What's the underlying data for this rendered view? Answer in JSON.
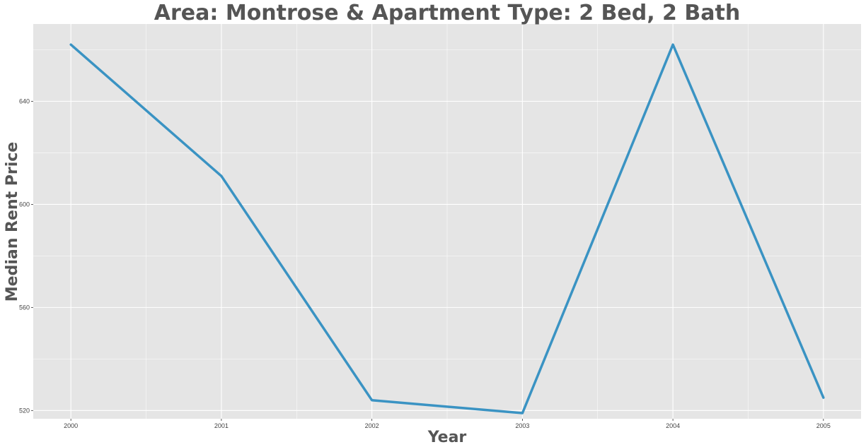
{
  "chart_data": {
    "type": "line",
    "title": "Area: Montrose & Apartment Type: 2 Bed, 2 Bath",
    "xlabel": "Year",
    "ylabel": "Median Rent Price",
    "x": [
      2000,
      2001,
      2002,
      2003,
      2004,
      2005
    ],
    "x_tick_labels": [
      "2000",
      "2001",
      "2002",
      "2003",
      "2004",
      "2005"
    ],
    "y_ticks": [
      520,
      560,
      600,
      640
    ],
    "y_tick_labels": [
      "520",
      "560",
      "600",
      "640"
    ],
    "series": [
      {
        "color": "#3a93c3",
        "values": [
          662,
          611,
          524,
          519,
          662,
          525
        ]
      }
    ],
    "xlim": [
      1999.75,
      2005.25
    ],
    "ylim": [
      516.8,
      670
    ],
    "grid": true,
    "legend": "none",
    "panel_color": "#e5e5e5",
    "grid_color": "#ffffff"
  }
}
